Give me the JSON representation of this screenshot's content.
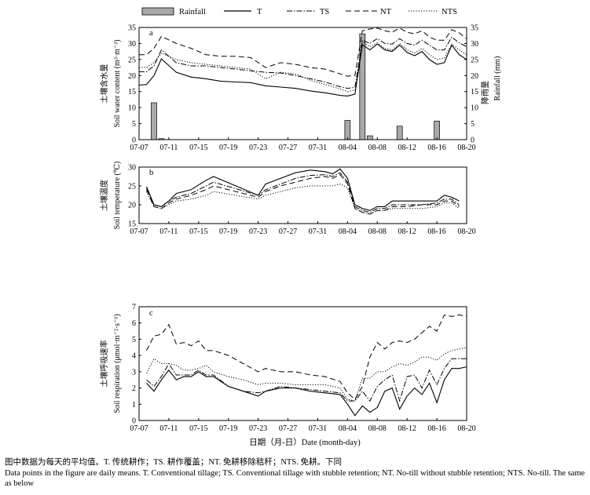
{
  "legend": [
    {
      "name": "Rainfall",
      "style": "bar"
    },
    {
      "name": "T",
      "style": "solid"
    },
    {
      "name": "TS",
      "style": "dashdot"
    },
    {
      "name": "NT",
      "style": "dashed"
    },
    {
      "name": "NTS",
      "style": "dotted"
    }
  ],
  "xlabel": "日期（月-日）Date (month-day)",
  "caption_cn": "图中数据为每天的平均值。T. 传统耕作；TS. 耕作覆盖；NT. 免耕移除秸秆；NTS. 免耕。下同",
  "caption_en": "Data points in the figure are daily means. T. Conventional tillage; TS. Conventional tillage with stubble retention; NT. No-till without stubble retention; NTS. No-till. The same as below",
  "chart_data": [
    {
      "type": "line",
      "panel": "a",
      "ylabel_cn": "土壤含水量",
      "ylabel": "Soil water content (m³·m⁻³)",
      "y2label_cn": "降雨量",
      "y2label": "Rainfall (mm)",
      "ylim": [
        0,
        35
      ],
      "y2lim": [
        0,
        35
      ],
      "yticks": [
        0,
        5,
        10,
        15,
        20,
        25,
        30,
        35
      ],
      "xlim": [
        "07-07",
        "08-20"
      ],
      "xticks": [
        "07-07",
        "07-11",
        "07-15",
        "07-19",
        "07-23",
        "07-27",
        "07-31",
        "08-04",
        "08-08",
        "08-12",
        "08-16",
        "08-20"
      ],
      "x": [
        "07-07",
        "07-08",
        "07-09",
        "07-10",
        "07-12",
        "07-14",
        "07-16",
        "07-18",
        "07-20",
        "07-22",
        "07-24",
        "07-26",
        "07-28",
        "07-30",
        "08-01",
        "08-03",
        "08-04",
        "08-05",
        "08-06",
        "08-07",
        "08-08",
        "08-09",
        "08-10",
        "08-11",
        "08-12",
        "08-13",
        "08-14",
        "08-15",
        "08-16",
        "08-17",
        "08-18",
        "08-19",
        "08-20"
      ],
      "series": [
        {
          "name": "T",
          "style": "solid",
          "values": [
            17,
            17.2,
            20,
            25.2,
            21,
            19.5,
            19,
            18.2,
            18,
            17.8,
            16.8,
            16.4,
            16,
            15.2,
            14.6,
            13.8,
            13.6,
            14.2,
            29.6,
            28,
            29.8,
            28,
            27.5,
            29.5,
            27.2,
            26.2,
            27.5,
            25,
            23.5,
            24,
            29.5,
            26.5,
            25
          ]
        },
        {
          "name": "TS",
          "style": "dashdot",
          "values": [
            21.2,
            21.2,
            23,
            28,
            24,
            23,
            23,
            22.5,
            22,
            21.5,
            21,
            20.8,
            20,
            19,
            18,
            16.5,
            16,
            16.3,
            31,
            30,
            31.5,
            30,
            29.8,
            31.5,
            30,
            29.5,
            31,
            29.5,
            28,
            28,
            32,
            30.2,
            29
          ]
        },
        {
          "name": "NT",
          "style": "dashed",
          "values": [
            26.5,
            26.5,
            28.5,
            32.2,
            30,
            28.5,
            26.5,
            26,
            26,
            25.6,
            22.5,
            24,
            23.5,
            22.5,
            22,
            20.5,
            19.8,
            20,
            34,
            34.5,
            34.8,
            34,
            33.5,
            34.8,
            33.5,
            33,
            34,
            32,
            31,
            31,
            34.3,
            33.3,
            31.5
          ]
        },
        {
          "name": "NTS",
          "style": "dotted",
          "values": [
            22.5,
            22.6,
            24,
            27,
            25,
            24,
            23.5,
            23,
            22.5,
            22,
            19,
            21,
            20.5,
            18.5,
            17.2,
            15.8,
            15,
            15.5,
            30.5,
            29,
            30.2,
            28.5,
            28,
            30,
            28,
            27,
            28.5,
            26.5,
            25,
            25.5,
            29.8,
            28,
            26.5
          ]
        }
      ],
      "rainfall": {
        "name": "Rainfall",
        "x": [
          "07-09",
          "07-10",
          "08-04",
          "08-06",
          "08-07",
          "08-11",
          "08-16"
        ],
        "values": [
          11.5,
          0.3,
          6,
          33,
          1.2,
          4.2,
          5.8
        ]
      }
    },
    {
      "type": "line",
      "panel": "b",
      "ylabel_cn": "土壤温度",
      "ylabel": "Soil temperature (℃)",
      "ylim": [
        15,
        30
      ],
      "yticks": [
        15,
        20,
        25,
        30
      ],
      "xlim": [
        "07-07",
        "08-20"
      ],
      "xticks": [
        "07-07",
        "07-11",
        "07-15",
        "07-19",
        "07-23",
        "07-27",
        "07-31",
        "08-04",
        "08-08",
        "08-12",
        "08-16",
        "08-20"
      ],
      "x": [
        "07-08",
        "07-09",
        "07-10",
        "07-11",
        "07-12",
        "07-14",
        "07-16",
        "07-17",
        "07-23",
        "07-24",
        "07-26",
        "07-28",
        "07-30",
        "08-01",
        "08-02",
        "08-03",
        "08-04",
        "08-05",
        "08-06",
        "08-07",
        "08-08",
        "08-09",
        "08-10",
        "08-12",
        "08-14",
        "08-16",
        "08-17",
        "08-18",
        "08-19"
      ],
      "series": [
        {
          "name": "T",
          "style": "solid",
          "values": [
            24.8,
            20,
            19.5,
            21,
            23,
            24,
            26.5,
            27.5,
            22.5,
            25.5,
            27,
            28.5,
            29.2,
            28.8,
            28.2,
            29.5,
            27,
            20,
            19,
            18.5,
            19.5,
            19.5,
            21,
            21,
            21,
            21,
            22.5,
            22,
            21
          ]
        },
        {
          "name": "TS",
          "style": "dashdot",
          "values": [
            24.5,
            20,
            19.5,
            21,
            22,
            23,
            25,
            26,
            22.5,
            24,
            25.5,
            27,
            27.8,
            28,
            27.5,
            28.5,
            26,
            19.5,
            18.5,
            18,
            19,
            19,
            20,
            20,
            20,
            20.5,
            21.5,
            21.5,
            20
          ]
        },
        {
          "name": "NT",
          "style": "dashed",
          "values": [
            24,
            19.5,
            19,
            20.5,
            21.5,
            22.5,
            24,
            25,
            22,
            23.5,
            25,
            26,
            27,
            27.5,
            27,
            28,
            25.5,
            19,
            18,
            17.5,
            18.5,
            18.5,
            19.5,
            19.5,
            20,
            20,
            21,
            21,
            19.5
          ]
        },
        {
          "name": "NTS",
          "style": "dotted",
          "values": [
            23.5,
            19.5,
            19,
            20,
            21,
            21.5,
            22.5,
            23.5,
            21.5,
            22.5,
            23.5,
            24.5,
            25,
            25,
            25,
            25.5,
            24.5,
            19,
            18,
            17.5,
            18.5,
            18.5,
            19,
            19,
            19,
            19.5,
            20.5,
            20.5,
            19
          ]
        }
      ]
    },
    {
      "type": "line",
      "panel": "c",
      "ylabel_cn": "土壤呼吸速率",
      "ylabel": "Soil respiration (μmol·m⁻²·s⁻¹)",
      "ylim": [
        0,
        7
      ],
      "yticks": [
        0,
        1,
        2,
        3,
        4,
        5,
        6,
        7
      ],
      "xlim": [
        "07-07",
        "08-20"
      ],
      "xticks": [
        "07-07",
        "07-11",
        "07-15",
        "07-19",
        "07-23",
        "07-27",
        "07-31",
        "08-04",
        "08-08",
        "08-12",
        "08-16",
        "08-20"
      ],
      "x": [
        "07-08",
        "07-09",
        "07-10",
        "07-11",
        "07-12",
        "07-13",
        "07-14",
        "07-15",
        "07-16",
        "07-17",
        "07-19",
        "07-21",
        "07-23",
        "07-24",
        "07-26",
        "07-28",
        "07-30",
        "08-01",
        "08-03",
        "08-04",
        "08-05",
        "08-06",
        "08-07",
        "08-08",
        "08-09",
        "08-10",
        "08-11",
        "08-12",
        "08-13",
        "08-14",
        "08-15",
        "08-16",
        "08-17",
        "08-18",
        "08-19",
        "08-20"
      ],
      "series": [
        {
          "name": "T",
          "style": "solid",
          "values": [
            2.3,
            1.8,
            2.5,
            3.1,
            2.5,
            2.7,
            2.7,
            3.0,
            2.7,
            2.7,
            2.1,
            1.8,
            1.5,
            1.8,
            2.0,
            2.0,
            1.8,
            1.7,
            1.6,
            1.0,
            0.3,
            0.9,
            0.5,
            0.8,
            1.8,
            2.0,
            0.7,
            1.5,
            2.0,
            1.6,
            2.3,
            1.1,
            2.5,
            3.2,
            3.2,
            3.3
          ]
        },
        {
          "name": "TS",
          "style": "dashdot",
          "values": [
            2.5,
            2.1,
            2.7,
            3.5,
            2.8,
            2.8,
            2.8,
            3.1,
            2.8,
            2.8,
            2.1,
            1.8,
            1.7,
            1.8,
            2.1,
            2.0,
            1.9,
            1.8,
            1.7,
            1.2,
            1.2,
            1.8,
            1.2,
            2.1,
            2.5,
            2.8,
            1.2,
            2.7,
            2.8,
            2.0,
            3.1,
            2.2,
            3.2,
            3.8,
            3.8,
            3.8
          ]
        },
        {
          "name": "NT",
          "style": "dashed",
          "values": [
            4.3,
            5.2,
            5.3,
            5.9,
            4.7,
            4.8,
            4.6,
            4.9,
            4.3,
            4.3,
            4.0,
            3.5,
            3.0,
            3.2,
            3.0,
            3.0,
            2.8,
            2.7,
            2.4,
            1.7,
            1.3,
            2.1,
            3.9,
            4.8,
            4.4,
            4.8,
            4.9,
            4.8,
            5.0,
            5.4,
            5.8,
            5.5,
            6.5,
            6.4,
            6.5,
            6.4
          ]
        },
        {
          "name": "NTS",
          "style": "dotted",
          "values": [
            2.9,
            3.8,
            3.5,
            3.5,
            3.4,
            3.1,
            3.1,
            3.2,
            3.4,
            3.0,
            2.7,
            2.5,
            2.2,
            2.3,
            2.3,
            2.2,
            2.2,
            2.2,
            2.0,
            1.3,
            1.2,
            2.6,
            2.6,
            3.0,
            3.0,
            3.3,
            3.5,
            3.4,
            3.6,
            3.9,
            3.9,
            3.7,
            4.1,
            4.3,
            4.4,
            4.5
          ]
        }
      ]
    }
  ]
}
